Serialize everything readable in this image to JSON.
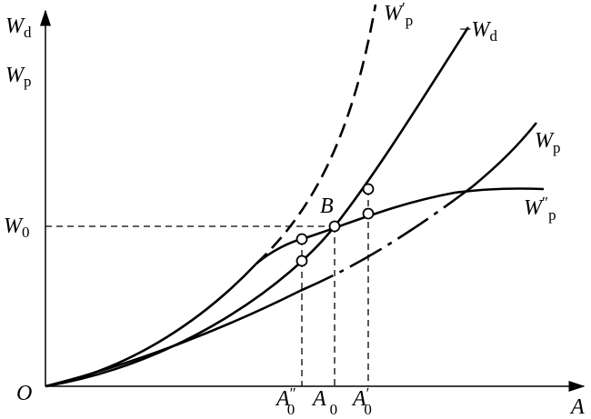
{
  "axis_labels": {
    "y_top": {
      "main": "W",
      "sub": "d"
    },
    "y_bottom": {
      "main": "W",
      "sub": "p"
    },
    "x": "A",
    "origin": "O"
  },
  "curve_labels": [
    {
      "main": "W",
      "prime": "′",
      "sub": "p"
    },
    {
      "minus": "−",
      "main": "W",
      "sub": "d"
    },
    {
      "main": "W",
      "sub": "p"
    },
    {
      "main": "W",
      "prime": "″",
      "sub": "p"
    }
  ],
  "level_label": {
    "main": "W",
    "sub": "0"
  },
  "point_label": "B",
  "x_marks": [
    {
      "main": "A",
      "prime": "″",
      "sub": "0"
    },
    {
      "main": "A",
      "sub": "0"
    },
    {
      "main": "A",
      "prime": "′",
      "sub": "0"
    }
  ]
}
